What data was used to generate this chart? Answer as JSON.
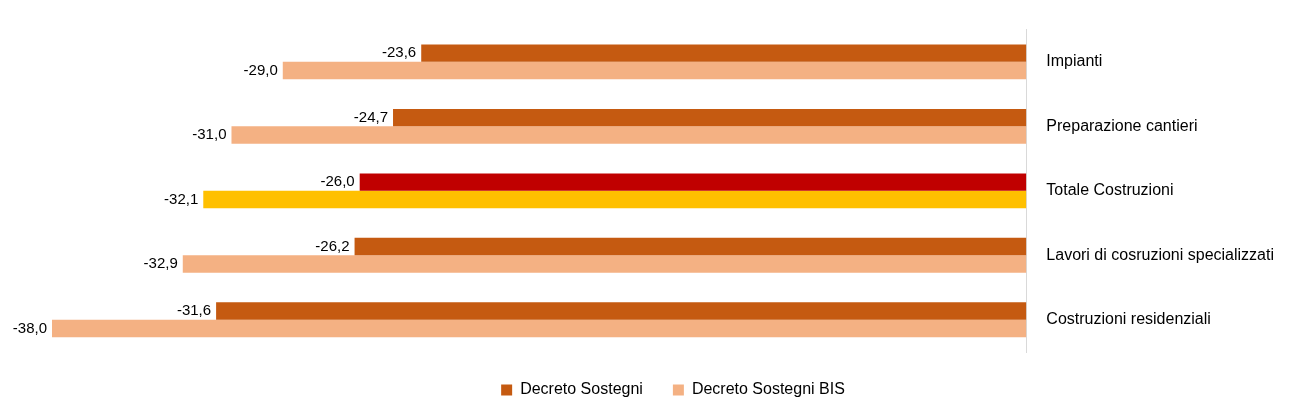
{
  "chart_data": {
    "type": "bar",
    "orientation": "horizontal",
    "categories": [
      "Impianti",
      "Preparazione cantieri",
      "Totale Costruzioni",
      "Lavori di cosruzioni specializzati",
      "Costruzioni residenziali"
    ],
    "series": [
      {
        "name": "Decreto Sostegni",
        "color": "#c55a11",
        "colors": [
          "#c55a11",
          "#c55a11",
          "#c00000",
          "#c55a11",
          "#c55a11"
        ],
        "values": [
          -23.6,
          -24.7,
          -26.0,
          -26.2,
          -31.6
        ],
        "value_labels": [
          "-23,6",
          "-24,7",
          "-26,0",
          "-26,2",
          "-31,6"
        ]
      },
      {
        "name": "Decreto Sostegni BIS",
        "color": "#f4b183",
        "colors": [
          "#f4b183",
          "#f4b183",
          "#ffc000",
          "#f4b183",
          "#f4b183"
        ],
        "values": [
          -29.0,
          -31.0,
          -32.1,
          -32.9,
          -38.0
        ],
        "value_labels": [
          "-29,0",
          "-31,0",
          "-32,1",
          "-32,9",
          "-38,0"
        ]
      }
    ],
    "legend": "bottom"
  }
}
